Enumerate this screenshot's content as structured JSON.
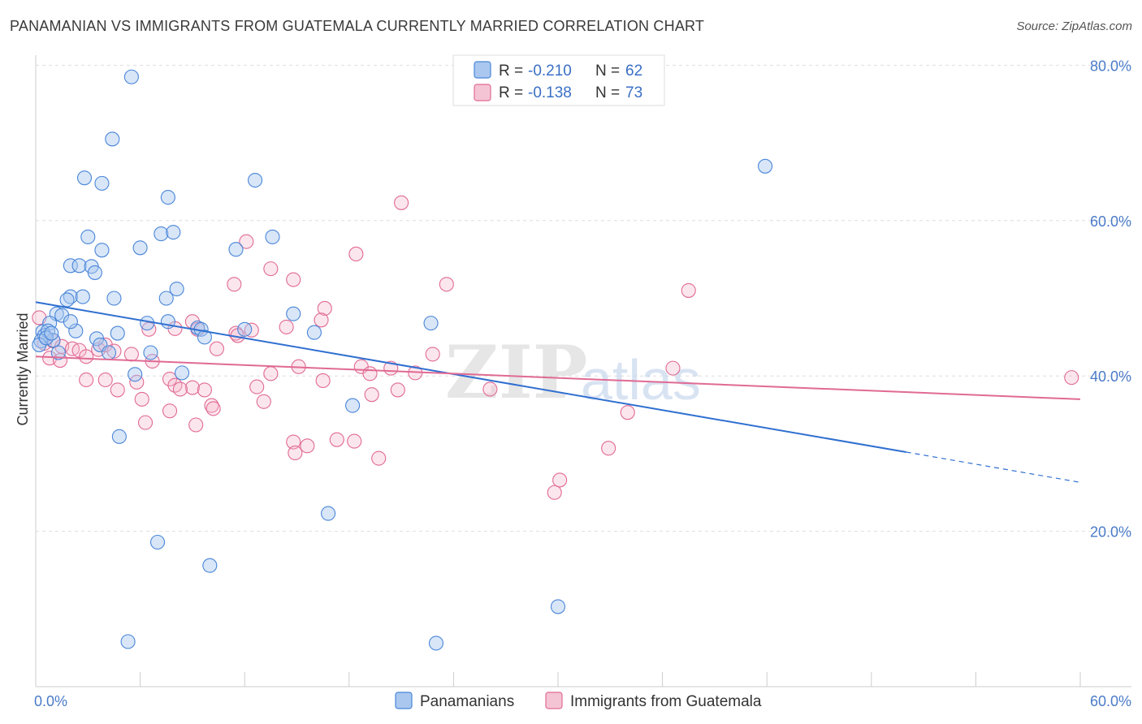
{
  "title": "PANAMANIAN VS IMMIGRANTS FROM GUATEMALA CURRENTLY MARRIED CORRELATION CHART",
  "source": "Source: ZipAtlas.com",
  "watermark": {
    "zip": "ZIP",
    "atlas": "atlas"
  },
  "colors": {
    "blue": "#4a86d8",
    "blue_fill": "#a9c7ef",
    "pink": "#e06a94",
    "pink_fill": "#f5b8cc",
    "axis_text": "#4a7bc8"
  },
  "chart_data": {
    "type": "scatter",
    "title": "PANAMANIAN VS IMMIGRANTS FROM GUATEMALA CURRENTLY MARRIED CORRELATION CHART",
    "xlabel": "",
    "ylabel": "Currently Married",
    "xlim": [
      0,
      60
    ],
    "ylim": [
      0,
      84
    ],
    "x_tick_labels": [
      "0.0%",
      "60.0%"
    ],
    "y_ticks": [
      20,
      40,
      60,
      80
    ],
    "y_tick_labels": [
      "20.0%",
      "40.0%",
      "60.0%",
      "80.0%"
    ],
    "grid": true,
    "legend_position": "top-center",
    "stats": [
      {
        "r_label": "R =",
        "r": "-0.210",
        "n_label": "N =",
        "n": "62"
      },
      {
        "r_label": "R =",
        "r": "-0.138",
        "n_label": "N =",
        "n": "73"
      }
    ],
    "series": [
      {
        "name": "Panamanians",
        "trend": {
          "x0": 0,
          "y0": 49.5,
          "x1": 50,
          "y1": 30.2,
          "dash_to_x": 60,
          "dash_to_y": 26.3
        },
        "points": [
          [
            5.5,
            78.5
          ],
          [
            4.4,
            70.5
          ],
          [
            2.8,
            65.5
          ],
          [
            3.8,
            64.8
          ],
          [
            7.6,
            63
          ],
          [
            12.6,
            65.2
          ],
          [
            41.9,
            67
          ],
          [
            3,
            57.9
          ],
          [
            3.8,
            56.2
          ],
          [
            6,
            56.5
          ],
          [
            7.2,
            58.3
          ],
          [
            7.9,
            58.5
          ],
          [
            11.5,
            56.3
          ],
          [
            13.6,
            57.9
          ],
          [
            2,
            54.2
          ],
          [
            2.5,
            54.2
          ],
          [
            3.2,
            54.1
          ],
          [
            3.4,
            53.3
          ],
          [
            2,
            50.2
          ],
          [
            2.7,
            50.2
          ],
          [
            4.5,
            50
          ],
          [
            8.1,
            51.2
          ],
          [
            7.5,
            50
          ],
          [
            1.8,
            49.8
          ],
          [
            1.2,
            48
          ],
          [
            1.5,
            47.8
          ],
          [
            0.8,
            46.8
          ],
          [
            6.4,
            46.8
          ],
          [
            7.6,
            47
          ],
          [
            9.3,
            46.2
          ],
          [
            9.5,
            46
          ],
          [
            14.8,
            48
          ],
          [
            22.7,
            46.8
          ],
          [
            0.4,
            45.7
          ],
          [
            0.5,
            45.2
          ],
          [
            0.7,
            45.8
          ],
          [
            1,
            44.6
          ],
          [
            2.3,
            45.8
          ],
          [
            3.5,
            44.8
          ],
          [
            4.7,
            45.5
          ],
          [
            9.7,
            45
          ],
          [
            16,
            45.6
          ],
          [
            0.3,
            44.5
          ],
          [
            0.2,
            44
          ],
          [
            3.7,
            44
          ],
          [
            1.3,
            43
          ],
          [
            4.2,
            43
          ],
          [
            6.6,
            43
          ],
          [
            5.7,
            40.2
          ],
          [
            8.4,
            40.4
          ],
          [
            18.2,
            36.2
          ],
          [
            4.8,
            32.2
          ],
          [
            16.8,
            22.3
          ],
          [
            7,
            18.6
          ],
          [
            10,
            15.6
          ],
          [
            30,
            10.3
          ],
          [
            5.3,
            5.8
          ],
          [
            23,
            5.6
          ],
          [
            0.6,
            44.9
          ],
          [
            2,
            47
          ],
          [
            12,
            46
          ],
          [
            0.9,
            45.5
          ]
        ]
      },
      {
        "name": "Immigrants from Guatemala",
        "trend": {
          "x0": 0,
          "y0": 42.5,
          "x1": 60,
          "y1": 37.0
        },
        "points": [
          [
            21,
            62.3
          ],
          [
            12.1,
            57.3
          ],
          [
            18.4,
            55.7
          ],
          [
            13.5,
            53.8
          ],
          [
            14.8,
            52.4
          ],
          [
            11.4,
            51.8
          ],
          [
            23.6,
            51.8
          ],
          [
            37.5,
            51
          ],
          [
            16.6,
            48.7
          ],
          [
            16.4,
            47.2
          ],
          [
            9,
            47
          ],
          [
            9.3,
            46
          ],
          [
            12.4,
            45.9
          ],
          [
            14.4,
            46.3
          ],
          [
            11.5,
            45.5
          ],
          [
            11.6,
            45.2
          ],
          [
            6.5,
            46
          ],
          [
            8,
            46.1
          ],
          [
            0.2,
            47.5
          ],
          [
            0.5,
            44.2
          ],
          [
            1,
            44.5
          ],
          [
            1.5,
            43.8
          ],
          [
            2.1,
            43.5
          ],
          [
            2.5,
            43.3
          ],
          [
            3.6,
            43.4
          ],
          [
            4,
            44
          ],
          [
            4.5,
            43.2
          ],
          [
            5.5,
            42.8
          ],
          [
            10.4,
            43.5
          ],
          [
            0.8,
            42.3
          ],
          [
            1.4,
            42
          ],
          [
            2.9,
            42.5
          ],
          [
            6.7,
            41.9
          ],
          [
            18.7,
            41.2
          ],
          [
            15.1,
            41.2
          ],
          [
            20.4,
            41
          ],
          [
            22.8,
            42.8
          ],
          [
            36.6,
            41
          ],
          [
            13.5,
            40.3
          ],
          [
            19.2,
            40.3
          ],
          [
            21.8,
            40.4
          ],
          [
            2.9,
            39.5
          ],
          [
            4,
            39.5
          ],
          [
            7.7,
            39.6
          ],
          [
            8,
            38.8
          ],
          [
            16.5,
            39.4
          ],
          [
            9,
            38.5
          ],
          [
            5.8,
            39.2
          ],
          [
            4.7,
            38.2
          ],
          [
            8.3,
            38.3
          ],
          [
            9.7,
            38.2
          ],
          [
            12.7,
            38.6
          ],
          [
            19.3,
            37.6
          ],
          [
            20.8,
            38.2
          ],
          [
            26.1,
            38.3
          ],
          [
            6.1,
            37
          ],
          [
            10.1,
            36.2
          ],
          [
            13.1,
            36.7
          ],
          [
            10.2,
            35.8
          ],
          [
            7.7,
            35.5
          ],
          [
            34,
            35.3
          ],
          [
            6.3,
            34
          ],
          [
            9.2,
            33.7
          ],
          [
            14.8,
            31.5
          ],
          [
            17.3,
            31.8
          ],
          [
            18.3,
            31.6
          ],
          [
            15.6,
            31
          ],
          [
            14.9,
            30.1
          ],
          [
            32.9,
            30.7
          ],
          [
            19.7,
            29.4
          ],
          [
            30.1,
            26.6
          ],
          [
            29.8,
            25
          ],
          [
            59.5,
            39.8
          ]
        ]
      }
    ]
  }
}
